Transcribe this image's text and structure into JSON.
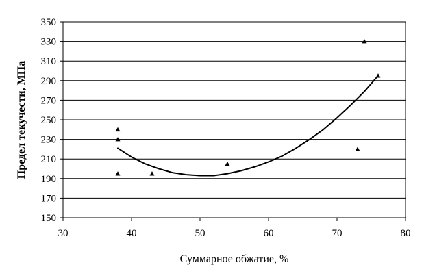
{
  "chart_data": {
    "type": "scatter",
    "title": "",
    "xlabel": "Суммарное обжатие, %",
    "ylabel": "Предел текучести, МПа",
    "xlim": [
      30,
      80
    ],
    "ylim": [
      150,
      350
    ],
    "x_ticks": [
      "30",
      "40",
      "50",
      "60",
      "70",
      "80"
    ],
    "y_ticks": [
      "150",
      "170",
      "190",
      "210",
      "230",
      "250",
      "270",
      "290",
      "310",
      "330",
      "350"
    ],
    "grid": "horizontal",
    "points": [
      {
        "x": 38,
        "y": 240
      },
      {
        "x": 38,
        "y": 230
      },
      {
        "x": 38,
        "y": 195
      },
      {
        "x": 43,
        "y": 195
      },
      {
        "x": 54,
        "y": 205
      },
      {
        "x": 73,
        "y": 220
      },
      {
        "x": 74,
        "y": 330
      },
      {
        "x": 76,
        "y": 295
      }
    ],
    "trendline": {
      "type": "polynomial-2",
      "x": [
        38,
        40,
        42,
        44,
        46,
        48,
        50,
        52,
        54,
        56,
        58,
        60,
        62,
        64,
        66,
        68,
        70,
        72,
        74,
        76
      ],
      "y": [
        221,
        212,
        205,
        200,
        196,
        194,
        193,
        193,
        195,
        198,
        202,
        207,
        213,
        221,
        230,
        240,
        252,
        265,
        279,
        295
      ]
    },
    "marker": "triangle",
    "colors": {
      "marker": "#000000",
      "line": "#000000",
      "grid": "#000000",
      "background": "#ffffff"
    }
  }
}
